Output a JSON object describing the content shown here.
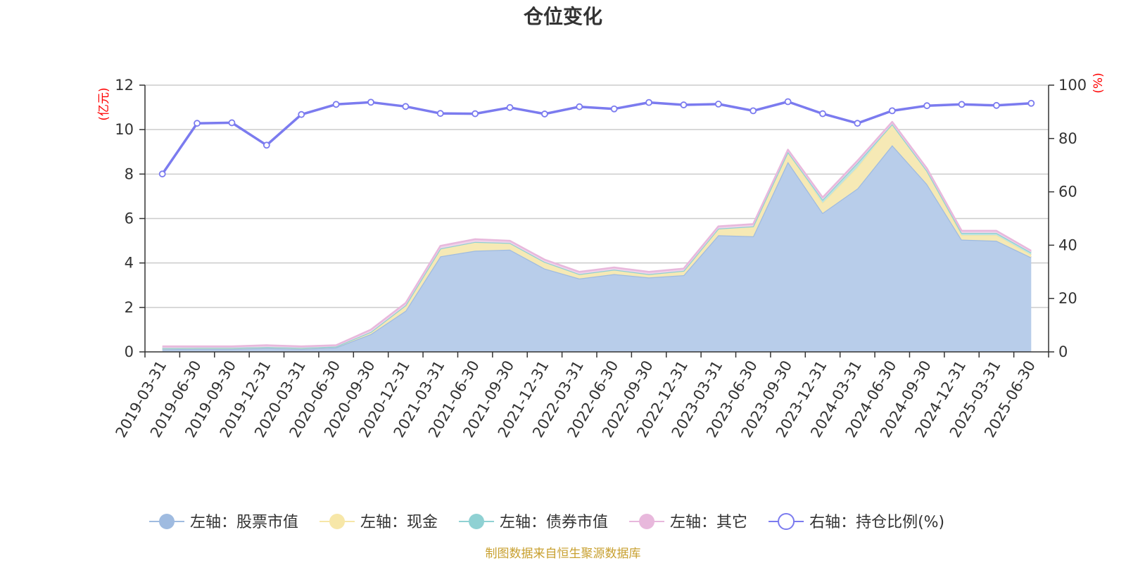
{
  "colors": {
    "stock": "#9fbbe0",
    "cash": "#f7e7a8",
    "bond": "#8fd1d3",
    "other": "#e8b8dc",
    "ratio": "#7b7bef",
    "stock_fill": "#b8cdea",
    "cash_fill": "#f6e9b5",
    "bond_fill": "#bfe3e0",
    "other_fill": "#efd3ea"
  },
  "chart_data": {
    "type": "area",
    "title": "仓位变化",
    "left_unit": "(亿元)",
    "right_unit": "(%)",
    "categories": [
      "2019-03-31",
      "2019-06-30",
      "2019-09-30",
      "2019-12-31",
      "2020-03-31",
      "2020-06-30",
      "2020-09-30",
      "2020-12-31",
      "2021-03-31",
      "2021-06-30",
      "2021-09-30",
      "2021-12-31",
      "2022-03-31",
      "2022-06-30",
      "2022-09-30",
      "2022-12-31",
      "2023-03-31",
      "2023-06-30",
      "2023-09-30",
      "2023-12-31",
      "2024-03-31",
      "2024-06-30",
      "2024-09-30",
      "2024-12-31",
      "2025-03-31",
      "2025-06-30"
    ],
    "left_axis": {
      "ylim": [
        0,
        12
      ],
      "ticks": [
        "0",
        "2",
        "4",
        "6",
        "8",
        "10",
        "12"
      ]
    },
    "right_axis": {
      "ylim": [
        0,
        100
      ],
      "ticks": [
        "0",
        "20",
        "40",
        "60",
        "80",
        "100"
      ]
    },
    "series": [
      {
        "name": "左轴：股票市值",
        "axis": "left",
        "stacked": true,
        "color_key": "stock",
        "values": [
          0.12,
          0.13,
          0.13,
          0.17,
          0.13,
          0.2,
          0.8,
          1.85,
          4.3,
          4.55,
          4.6,
          3.75,
          3.3,
          3.5,
          3.35,
          3.45,
          5.25,
          5.2,
          8.55,
          6.25,
          7.35,
          9.3,
          7.55,
          5.05,
          5.0,
          4.25
        ]
      },
      {
        "name": "左轴：现金",
        "axis": "left",
        "stacked": true,
        "color_key": "cash",
        "values": [
          0.05,
          0.05,
          0.05,
          0.05,
          0.05,
          0.04,
          0.1,
          0.25,
          0.35,
          0.4,
          0.3,
          0.3,
          0.2,
          0.2,
          0.15,
          0.2,
          0.3,
          0.45,
          0.45,
          0.45,
          0.95,
          0.95,
          0.6,
          0.2,
          0.25,
          0.12
        ]
      },
      {
        "name": "左轴：债券市值",
        "axis": "left",
        "stacked": true,
        "color_key": "bond",
        "values": [
          0.0,
          0.0,
          0.0,
          0.0,
          0.0,
          0.0,
          0.0,
          0.0,
          0.0,
          0.0,
          0.0,
          0.0,
          0.0,
          0.0,
          0.0,
          0.0,
          0.0,
          0.0,
          0.0,
          0.15,
          0.2,
          0.0,
          0.0,
          0.1,
          0.1,
          0.1
        ]
      },
      {
        "name": "左轴：其它",
        "axis": "left",
        "stacked": true,
        "color_key": "other",
        "values": [
          0.08,
          0.07,
          0.07,
          0.08,
          0.07,
          0.06,
          0.1,
          0.1,
          0.12,
          0.12,
          0.1,
          0.1,
          0.1,
          0.1,
          0.1,
          0.1,
          0.1,
          0.1,
          0.1,
          0.1,
          0.1,
          0.1,
          0.1,
          0.1,
          0.1,
          0.08
        ]
      },
      {
        "name": "右轴：持仓比例(%)",
        "axis": "right",
        "stacked": false,
        "color_key": "ratio",
        "values": [
          66.7,
          85.7,
          85.9,
          77.5,
          89.0,
          92.8,
          93.6,
          92.0,
          89.4,
          89.3,
          91.6,
          89.2,
          91.9,
          91.1,
          93.5,
          92.6,
          92.9,
          90.4,
          93.8,
          89.3,
          85.7,
          90.4,
          92.3,
          92.8,
          92.4,
          93.2
        ]
      }
    ],
    "grid": true,
    "legend_position": "bottom"
  },
  "footer": {
    "source": "制图数据来自恒生聚源数据库"
  }
}
